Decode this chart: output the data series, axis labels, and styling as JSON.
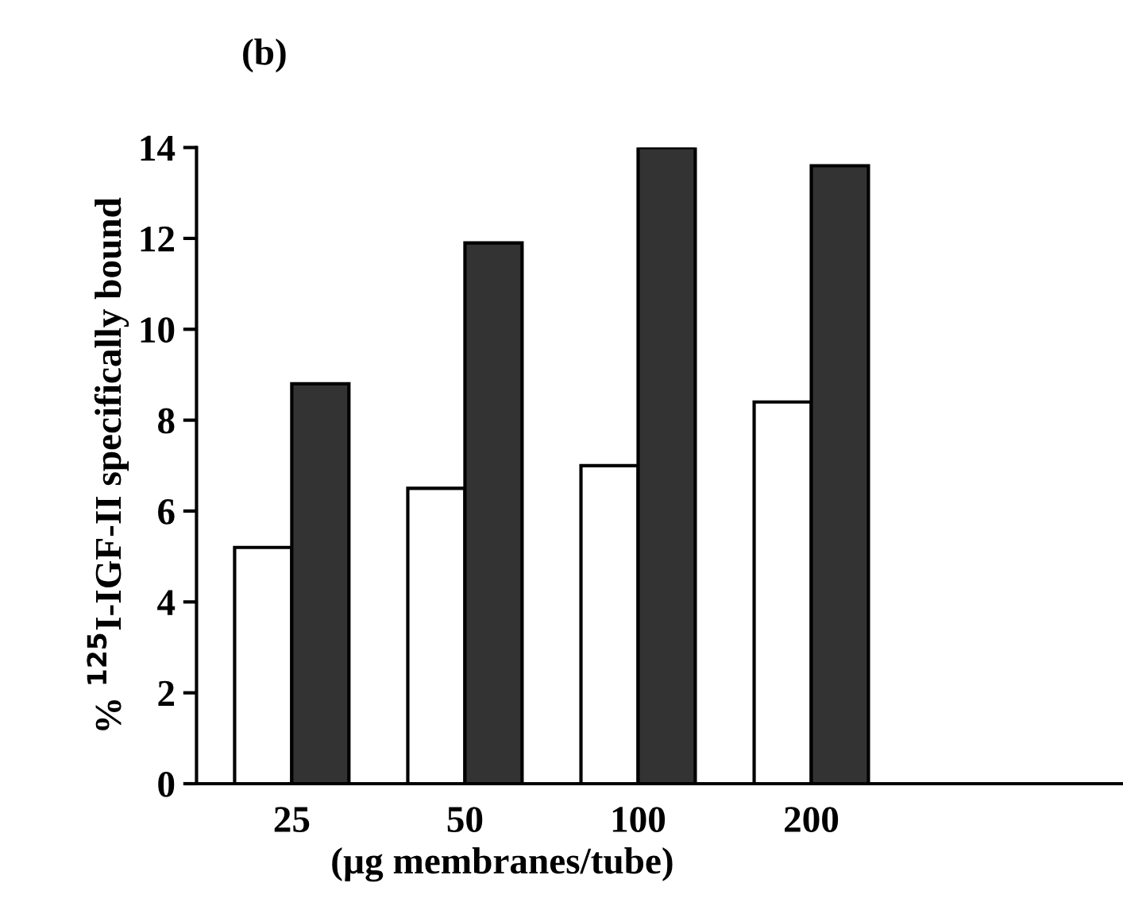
{
  "chart_data": {
    "type": "bar",
    "title": "(b)",
    "ylabel": "% $^{125}$I-IGF-II specifically bound",
    "xlabel": "(µg membranes/tube)",
    "categories": [
      "25",
      "50",
      "100",
      "200",
      null
    ],
    "series": [
      {
        "color": "#ffffff",
        "values": [
          5.2,
          6.5,
          7.0,
          8.4,
          null
        ]
      },
      {
        "color": "#333333",
        "values": [
          8.8,
          11.9,
          14.0,
          13.6,
          null
        ]
      }
    ],
    "ylim": [
      0,
      14
    ],
    "yticks": [
      0,
      2,
      4,
      6,
      8,
      10,
      12,
      14
    ],
    "grid": false,
    "legend": false
  }
}
